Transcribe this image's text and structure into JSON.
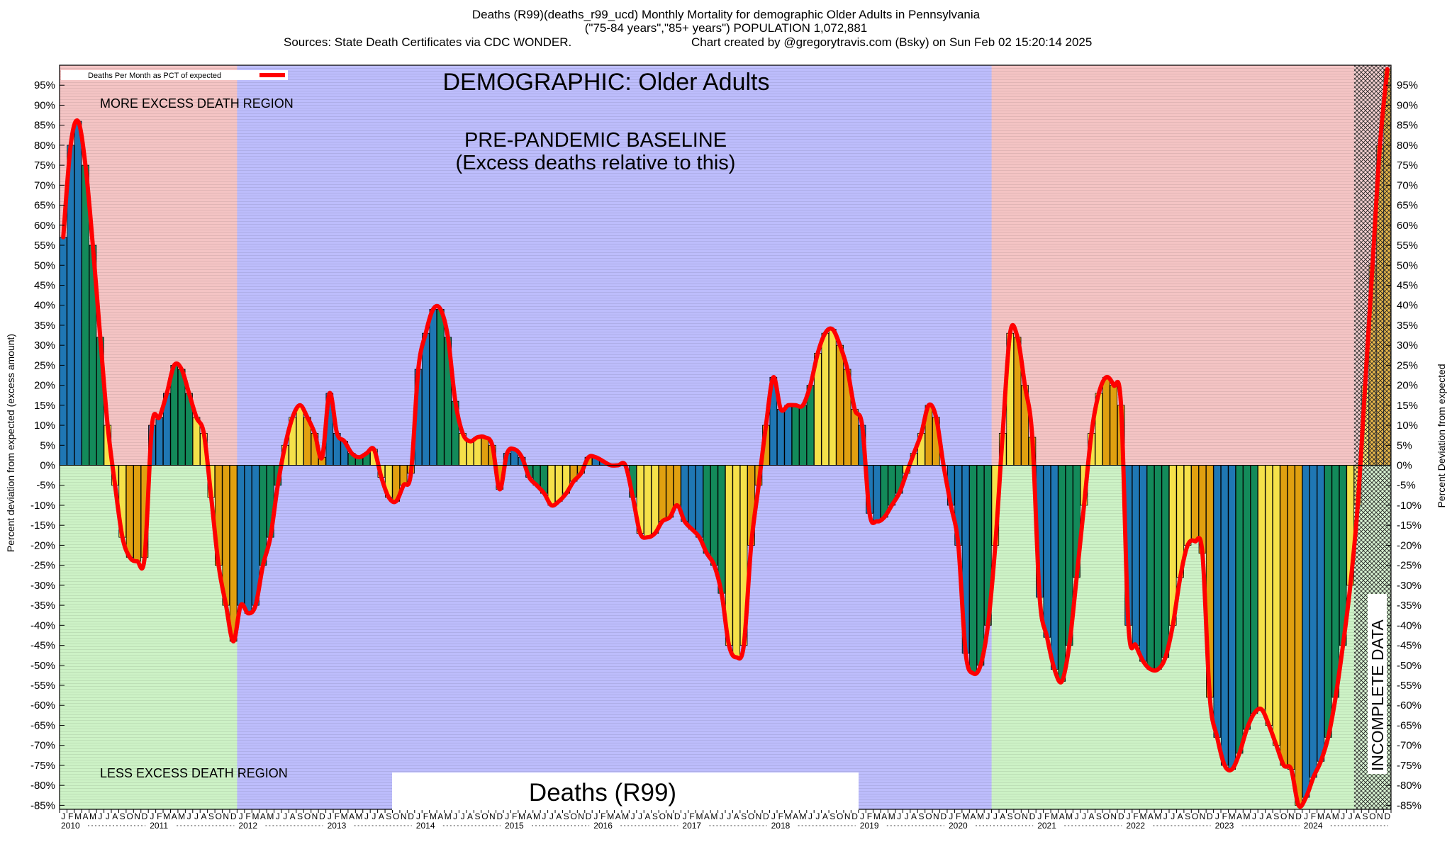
{
  "header": {
    "line1": "Deaths (R99)(deaths_r99_ucd) Monthly Mortality for demographic Older Adults in Pennsylvania",
    "line2": "(\"75-84 years\",\"85+ years\") POPULATION 1,072,881",
    "line3_left": "Sources: State Death Certificates via CDC WONDER.",
    "line3_right": "Chart created by @gregorytravis.com (Bsky) on Sun Feb 02 15:20:14 2025"
  },
  "annotations": {
    "demographic": "DEMOGRAPHIC: Older Adults",
    "baseline_line1": "PRE-PANDEMIC BASELINE",
    "baseline_line2": "(Excess deaths relative to this)",
    "more_region": "MORE EXCESS DEATH REGION",
    "less_region": "LESS EXCESS DEATH REGION",
    "incomplete": "INCOMPLETE DATA",
    "cause_box": "Deaths (R99)"
  },
  "colors": {
    "excess_region": "#f4c4c4",
    "less_region": "#cdf2c6",
    "baseline_region": "#bdbdfc",
    "line": "#ff0000",
    "bar_colors": [
      "#1f77b4",
      "#138a5a",
      "#f5e14a",
      "#e0a010"
    ]
  },
  "chart_data": {
    "type": "bar",
    "title": "Deaths (R99)(deaths_r99_ucd) Monthly Mortality for demographic Older Adults in Pennsylvania",
    "ylabel": "Percent deviation from expected (excess amount)",
    "ylabel_right": "Percent Deviation from expected",
    "ylim": [
      -86,
      100
    ],
    "yticks": [
      95,
      90,
      85,
      80,
      75,
      70,
      65,
      60,
      55,
      50,
      45,
      40,
      35,
      30,
      25,
      20,
      15,
      10,
      5,
      0,
      -5,
      -10,
      -15,
      -20,
      -25,
      -30,
      -35,
      -40,
      -45,
      -50,
      -55,
      -60,
      -65,
      -70,
      -75,
      -80,
      -85
    ],
    "ytick_suffix": "%",
    "legend": {
      "label": "Deaths Per Month as PCT of expected",
      "position": "top-left"
    },
    "month_letters": [
      "J",
      "F",
      "M",
      "A",
      "M",
      "J",
      "J",
      "A",
      "S",
      "O",
      "N",
      "D"
    ],
    "years": [
      "2010",
      "2011",
      "2012",
      "2013",
      "2014",
      "2015",
      "2016",
      "2017",
      "2018",
      "2019",
      "2020",
      "2021",
      "2022",
      "2023",
      "2024"
    ],
    "regions": {
      "pre_pandemic_baseline": [
        "2012-01",
        "2020-06"
      ],
      "incomplete_data": [
        "2024-08",
        "2024-12"
      ]
    },
    "series": [
      {
        "name": "Deaths Per Month as PCT of expected",
        "start": "2010-01",
        "values": [
          57,
          80,
          86,
          75,
          55,
          32,
          10,
          -5,
          -18,
          -23,
          -24,
          -23,
          10,
          12,
          18,
          25,
          24,
          18,
          12,
          8,
          -8,
          -25,
          -35,
          -44,
          -35,
          -37,
          -35,
          -25,
          -18,
          -5,
          5,
          12,
          15,
          12,
          8,
          2,
          18,
          8,
          6,
          3,
          2,
          3,
          4,
          -3,
          -8,
          -9,
          -5,
          -2,
          24,
          33,
          39,
          39,
          32,
          16,
          8,
          6,
          7,
          7,
          5,
          -6,
          3,
          4,
          2,
          -3,
          -5,
          -7,
          -10,
          -9,
          -7,
          -4,
          -2,
          2,
          2,
          1,
          0,
          0,
          0,
          -8,
          -17,
          -18,
          -17,
          -14,
          -13,
          -10,
          -14,
          -16,
          -18,
          -22,
          -25,
          -32,
          -45,
          -48,
          -45,
          -20,
          -5,
          10,
          22,
          14,
          15,
          15,
          15,
          20,
          28,
          33,
          34,
          30,
          24,
          14,
          10,
          -12,
          -14,
          -13,
          -10,
          -7,
          -2,
          3,
          8,
          15,
          12,
          0,
          -10,
          -20,
          -47,
          -52,
          -50,
          -40,
          -20,
          8,
          33,
          32,
          20,
          7,
          -33,
          -43,
          -51,
          -54,
          -45,
          -28,
          -10,
          8,
          18,
          22,
          20,
          15,
          -40,
          -45,
          -49,
          -51,
          -51,
          -48,
          -40,
          -28,
          -20,
          -19,
          -22,
          -58,
          -68,
          -75,
          -76,
          -72,
          -66,
          -62,
          -61,
          -65,
          -70,
          -75,
          -76,
          -85,
          -83,
          -78,
          -74,
          -68,
          -58,
          -45,
          -30,
          -10,
          20,
          50,
          80,
          99
        ]
      }
    ]
  }
}
